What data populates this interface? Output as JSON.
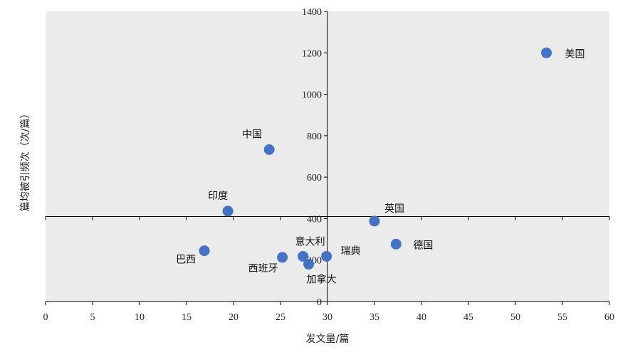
{
  "chart_data": {
    "type": "scatter",
    "xlabel": "发文量/篇",
    "ylabel": "篇均被引频次（次/篇）",
    "xlim": [
      0,
      60
    ],
    "ylim": [
      0,
      1400
    ],
    "xticks": [
      0,
      5,
      10,
      15,
      20,
      25,
      30,
      35,
      40,
      45,
      50,
      55,
      60
    ],
    "yticks": [
      0,
      200,
      400,
      600,
      800,
      1000,
      1200,
      1400
    ],
    "reference_lines": {
      "x": 30,
      "y": 410
    },
    "background_color": "#ebebeb",
    "point_color": "#4472c4",
    "grid": false,
    "points": [
      {
        "name": "美国",
        "x": 53.3,
        "y": 1200
      },
      {
        "name": "中国",
        "x": 23.8,
        "y": 733
      },
      {
        "name": "印度",
        "x": 19.4,
        "y": 436
      },
      {
        "name": "英国",
        "x": 35.0,
        "y": 388
      },
      {
        "name": "德国",
        "x": 37.3,
        "y": 277
      },
      {
        "name": "巴西",
        "x": 16.9,
        "y": 245
      },
      {
        "name": "西班牙",
        "x": 25.2,
        "y": 213
      },
      {
        "name": "意大利",
        "x": 27.4,
        "y": 218
      },
      {
        "name": "瑞典",
        "x": 29.9,
        "y": 218
      },
      {
        "name": "加拿大",
        "x": 28.0,
        "y": 180
      }
    ]
  }
}
